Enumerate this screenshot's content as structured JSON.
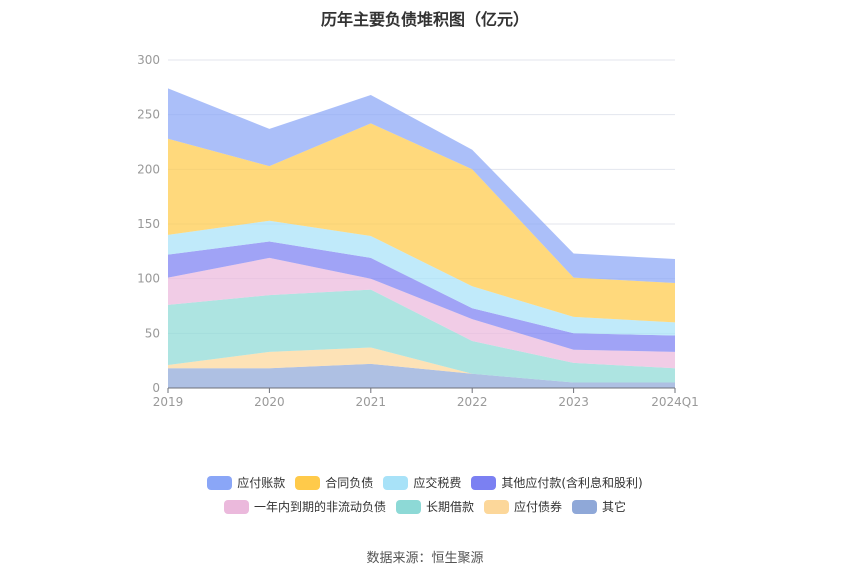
{
  "chart_data": {
    "type": "area",
    "stacked": true,
    "title": "历年主要负债堆积图（亿元）",
    "categories": [
      "2019",
      "2020",
      "2021",
      "2022",
      "2023",
      "2024Q1"
    ],
    "ylim": [
      0,
      300
    ],
    "yticks": [
      0,
      50,
      100,
      150,
      200,
      250,
      300
    ],
    "grid": true,
    "legend_position": "bottom",
    "series": [
      {
        "name": "其它",
        "color": "#8fa8d8",
        "values": [
          18,
          18,
          22,
          13,
          5,
          5
        ]
      },
      {
        "name": "应付债券",
        "color": "#fcd79a",
        "values": [
          3,
          15,
          15,
          0,
          0,
          0
        ]
      },
      {
        "name": "长期借款",
        "color": "#8dd9d6",
        "values": [
          55,
          52,
          53,
          30,
          18,
          13
        ]
      },
      {
        "name": "一年内到期的非流动负债",
        "color": "#ebb9dc",
        "values": [
          25,
          34,
          10,
          20,
          12,
          15
        ]
      },
      {
        "name": "其他应付款(含利息和股利)",
        "color": "#7b80f2",
        "values": [
          21,
          15,
          19,
          10,
          15,
          15
        ]
      },
      {
        "name": "应交税费",
        "color": "#a8e2f8",
        "values": [
          18,
          19,
          20,
          20,
          15,
          12
        ]
      },
      {
        "name": "合同负债",
        "color": "#ffca4a",
        "values": [
          88,
          50,
          103,
          107,
          36,
          36
        ]
      },
      {
        "name": "应付账款",
        "color": "#8aa6f7",
        "values": [
          46,
          34,
          26,
          18,
          22,
          22
        ]
      }
    ]
  },
  "legend": {
    "row1": [
      {
        "label": "应付账款",
        "color": "#8aa6f7"
      },
      {
        "label": "合同负债",
        "color": "#ffca4a"
      },
      {
        "label": "应交税费",
        "color": "#a8e2f8"
      },
      {
        "label": "其他应付款(含利息和股利)",
        "color": "#7b80f2"
      }
    ],
    "row2": [
      {
        "label": "一年内到期的非流动负债",
        "color": "#ebb9dc"
      },
      {
        "label": "长期借款",
        "color": "#8dd9d6"
      },
      {
        "label": "应付债券",
        "color": "#fcd79a"
      },
      {
        "label": "其它",
        "color": "#8fa8d8"
      }
    ]
  },
  "source": "数据来源：恒生聚源"
}
